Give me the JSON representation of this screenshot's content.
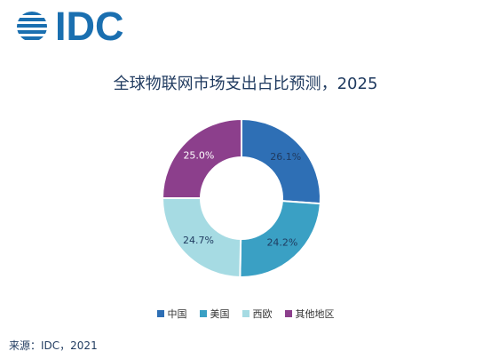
{
  "logo": {
    "text": "IDC"
  },
  "chart_data": {
    "type": "pie",
    "title": "全球物联网市场支出占比预测，2025",
    "categories": [
      "中国",
      "美国",
      "西欧",
      "其他地区"
    ],
    "values": [
      26.1,
      24.2,
      24.7,
      25.0
    ],
    "value_labels": [
      "26.1%",
      "24.2%",
      "24.7%",
      "25.0%"
    ],
    "colors": [
      "#2e6fb5",
      "#3aa0c4",
      "#a6dbe3",
      "#8c3f8c"
    ],
    "label_colors": [
      "#1f3a5f",
      "#1f3a5f",
      "#1f3a5f",
      "#ffffff"
    ],
    "donut": true,
    "legend_position": "bottom"
  },
  "legend": [
    {
      "label": "中国",
      "color": "#2e6fb5"
    },
    {
      "label": "美国",
      "color": "#3aa0c4"
    },
    {
      "label": "西欧",
      "color": "#a6dbe3"
    },
    {
      "label": "其他地区",
      "color": "#8c3f8c"
    }
  ],
  "source": "来源：IDC，2021"
}
